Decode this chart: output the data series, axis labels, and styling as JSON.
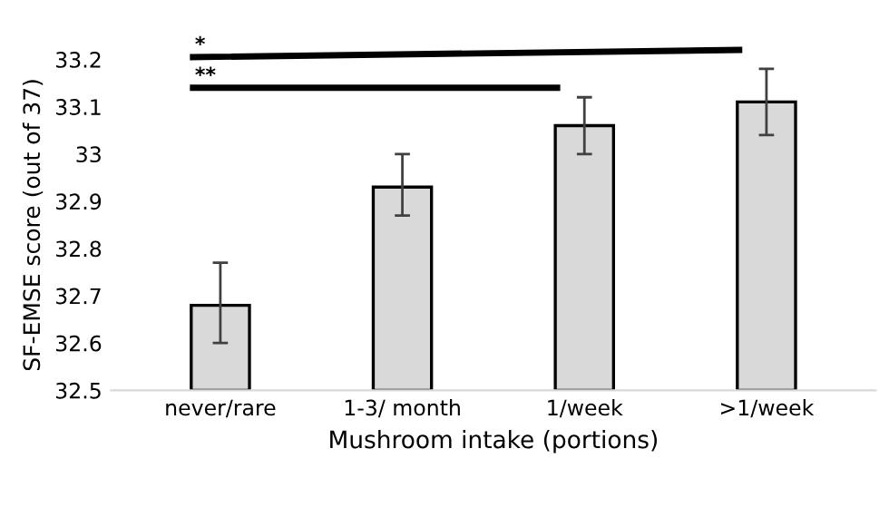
{
  "chart_data": {
    "type": "bar",
    "xlabel": "Mushroom intake (portions)",
    "ylabel": "SF-EMSE score (out of 37)",
    "categories": [
      "never/rare",
      "1-3/ month",
      "1/week",
      ">1/week"
    ],
    "values": [
      32.68,
      32.93,
      33.06,
      33.11
    ],
    "errors": [
      [
        32.6,
        32.77
      ],
      [
        32.87,
        33.0
      ],
      [
        33.0,
        33.12
      ],
      [
        33.04,
        33.18
      ]
    ],
    "color": "#d9d9d9",
    "ylim": [
      32.5,
      33.2
    ],
    "yticks": [
      32.5,
      32.6,
      32.7,
      32.8,
      32.9,
      {
        "value": 33.0,
        "label": "33"
      },
      33.1,
      33.2
    ],
    "grid": false,
    "annotations": [
      "*",
      "**"
    ]
  }
}
